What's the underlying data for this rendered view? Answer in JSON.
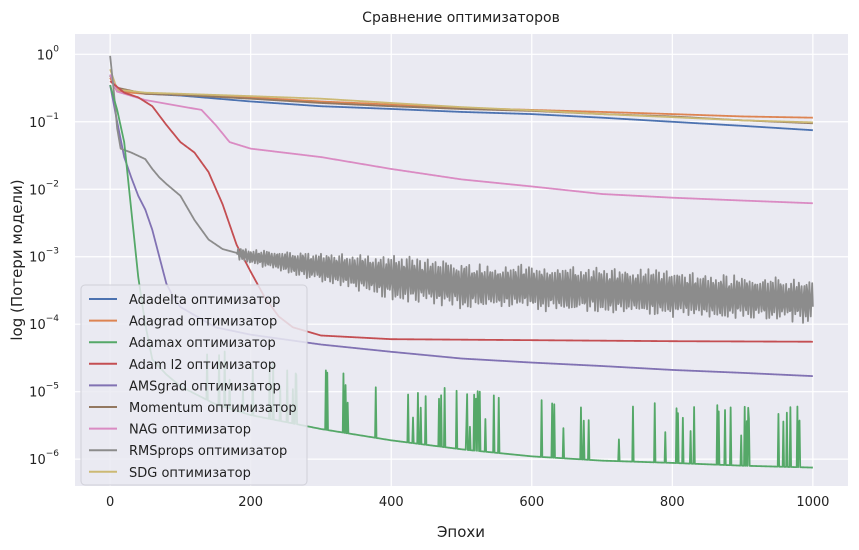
{
  "chart_data": {
    "type": "line",
    "title": "Сравнение оптимизаторов",
    "xlabel": "Эпохи",
    "ylabel": "log (Потери модели)",
    "xlim": [
      -50,
      1050
    ],
    "ylim": [
      4e-07,
      2
    ],
    "yscale": "log",
    "x_ticks": [
      0,
      200,
      400,
      600,
      800,
      1000
    ],
    "y_ticks": [
      {
        "value": 1,
        "base": "10",
        "exp": "0"
      },
      {
        "value": 0.1,
        "base": "10",
        "exp": "−1"
      },
      {
        "value": 0.01,
        "base": "10",
        "exp": "−2"
      },
      {
        "value": 0.001,
        "base": "10",
        "exp": "−3"
      },
      {
        "value": 0.0001,
        "base": "10",
        "exp": "−4"
      },
      {
        "value": 1e-05,
        "base": "10",
        "exp": "−5"
      },
      {
        "value": 1e-06,
        "base": "10",
        "exp": "−6"
      }
    ],
    "grid": true,
    "legend_position": "lower-left",
    "background": "#eaeaf2",
    "series": [
      {
        "name": "Adadelta оптимизатор",
        "color": "#4c72b0",
        "points": [
          [
            0,
            0.5
          ],
          [
            10,
            0.3
          ],
          [
            50,
            0.26
          ],
          [
            100,
            0.245
          ],
          [
            200,
            0.2
          ],
          [
            300,
            0.17
          ],
          [
            400,
            0.155
          ],
          [
            500,
            0.14
          ],
          [
            600,
            0.13
          ],
          [
            700,
            0.115
          ],
          [
            800,
            0.1
          ],
          [
            900,
            0.087
          ],
          [
            1000,
            0.075
          ]
        ]
      },
      {
        "name": "Adagrad оптимизатор",
        "color": "#dd8452",
        "points": [
          [
            0,
            0.45
          ],
          [
            10,
            0.28
          ],
          [
            50,
            0.26
          ],
          [
            100,
            0.25
          ],
          [
            200,
            0.23
          ],
          [
            300,
            0.2
          ],
          [
            400,
            0.18
          ],
          [
            500,
            0.16
          ],
          [
            600,
            0.15
          ],
          [
            700,
            0.14
          ],
          [
            800,
            0.13
          ],
          [
            900,
            0.12
          ],
          [
            1000,
            0.115
          ]
        ]
      },
      {
        "name": "Adamax оптимизатор",
        "color": "#55a868",
        "points": [
          [
            0,
            0.35
          ],
          [
            10,
            0.15
          ],
          [
            20,
            0.05
          ],
          [
            30,
            0.005
          ],
          [
            40,
            0.0005
          ],
          [
            50,
            0.0001
          ],
          [
            60,
            3e-05
          ],
          [
            80,
            1.8e-05
          ],
          [
            100,
            1.2e-05
          ],
          [
            150,
            6.5e-06
          ],
          [
            200,
            4.5e-06
          ],
          [
            300,
            2.8e-06
          ],
          [
            400,
            1.9e-06
          ],
          [
            500,
            1.4e-06
          ],
          [
            600,
            1.1e-06
          ],
          [
            700,
            9.5e-07
          ],
          [
            800,
            8.8e-07
          ],
          [
            900,
            8e-07
          ],
          [
            1000,
            7.5e-07
          ]
        ]
      },
      {
        "name": "Adam l2 оптимизатор",
        "color": "#c44e52",
        "points": [
          [
            0,
            0.4
          ],
          [
            20,
            0.27
          ],
          [
            40,
            0.23
          ],
          [
            60,
            0.17
          ],
          [
            80,
            0.09
          ],
          [
            100,
            0.05
          ],
          [
            120,
            0.035
          ],
          [
            140,
            0.018
          ],
          [
            160,
            0.006
          ],
          [
            180,
            0.0015
          ],
          [
            200,
            0.0006
          ],
          [
            220,
            0.00025
          ],
          [
            240,
            0.00013
          ],
          [
            260,
            9e-05
          ],
          [
            300,
            6.8e-05
          ],
          [
            400,
            6e-05
          ],
          [
            600,
            5.8e-05
          ],
          [
            800,
            5.6e-05
          ],
          [
            1000,
            5.5e-05
          ]
        ]
      },
      {
        "name": "AMSgrad оптимизатор",
        "color": "#8172b3",
        "points": [
          [
            0,
            0.35
          ],
          [
            10,
            0.1
          ],
          [
            20,
            0.03
          ],
          [
            30,
            0.015
          ],
          [
            40,
            0.008
          ],
          [
            50,
            0.005
          ],
          [
            60,
            0.0025
          ],
          [
            70,
            0.001
          ],
          [
            80,
            0.0004
          ],
          [
            90,
            0.00025
          ],
          [
            100,
            0.00018
          ],
          [
            150,
            9e-05
          ],
          [
            200,
            7e-05
          ],
          [
            300,
            5e-05
          ],
          [
            400,
            3.9e-05
          ],
          [
            500,
            3.1e-05
          ],
          [
            600,
            2.7e-05
          ],
          [
            700,
            2.4e-05
          ],
          [
            800,
            2.1e-05
          ],
          [
            900,
            1.9e-05
          ],
          [
            1000,
            1.7e-05
          ]
        ]
      },
      {
        "name": "Momentum оптимизатор",
        "color": "#937860",
        "points": [
          [
            0,
            0.48
          ],
          [
            10,
            0.32
          ],
          [
            50,
            0.26
          ],
          [
            100,
            0.25
          ],
          [
            200,
            0.22
          ],
          [
            300,
            0.19
          ],
          [
            400,
            0.17
          ],
          [
            500,
            0.155
          ],
          [
            600,
            0.145
          ],
          [
            700,
            0.13
          ],
          [
            800,
            0.12
          ],
          [
            900,
            0.105
          ],
          [
            1000,
            0.095
          ]
        ]
      },
      {
        "name": "NAG оптимизатор",
        "color": "#da8bc3",
        "points": [
          [
            0,
            0.5
          ],
          [
            10,
            0.28
          ],
          [
            50,
            0.21
          ],
          [
            100,
            0.17
          ],
          [
            130,
            0.15
          ],
          [
            150,
            0.09
          ],
          [
            170,
            0.05
          ],
          [
            200,
            0.04
          ],
          [
            300,
            0.03
          ],
          [
            400,
            0.02
          ],
          [
            500,
            0.014
          ],
          [
            600,
            0.011
          ],
          [
            700,
            0.0085
          ],
          [
            800,
            0.0075
          ],
          [
            900,
            0.0068
          ],
          [
            1000,
            0.0062
          ]
        ]
      },
      {
        "name": "RMSprops оптимизатор",
        "color": "#8c8c8c",
        "points": [
          [
            0,
            0.95
          ],
          [
            5,
            0.3
          ],
          [
            10,
            0.08
          ],
          [
            15,
            0.04
          ],
          [
            30,
            0.035
          ],
          [
            50,
            0.028
          ],
          [
            60,
            0.02
          ],
          [
            70,
            0.015
          ],
          [
            80,
            0.012
          ],
          [
            100,
            0.008
          ],
          [
            120,
            0.0035
          ],
          [
            140,
            0.0018
          ],
          [
            160,
            0.0013
          ],
          [
            200,
            0.001
          ],
          [
            300,
            0.0007
          ],
          [
            400,
            0.0005
          ],
          [
            500,
            0.00038
          ],
          [
            600,
            0.00035
          ],
          [
            700,
            0.00032
          ],
          [
            800,
            0.00028
          ],
          [
            900,
            0.00025
          ],
          [
            1000,
            0.00022
          ]
        ],
        "oscillation_amplitude": 0.35
      },
      {
        "name": "SDG оптимизатор",
        "color": "#ccb974",
        "points": [
          [
            0,
            0.6
          ],
          [
            10,
            0.3
          ],
          [
            50,
            0.27
          ],
          [
            100,
            0.26
          ],
          [
            200,
            0.24
          ],
          [
            300,
            0.22
          ],
          [
            400,
            0.19
          ],
          [
            500,
            0.165
          ],
          [
            600,
            0.148
          ],
          [
            700,
            0.13
          ],
          [
            800,
            0.117
          ],
          [
            900,
            0.105
          ],
          [
            1000,
            0.098
          ]
        ]
      }
    ]
  }
}
